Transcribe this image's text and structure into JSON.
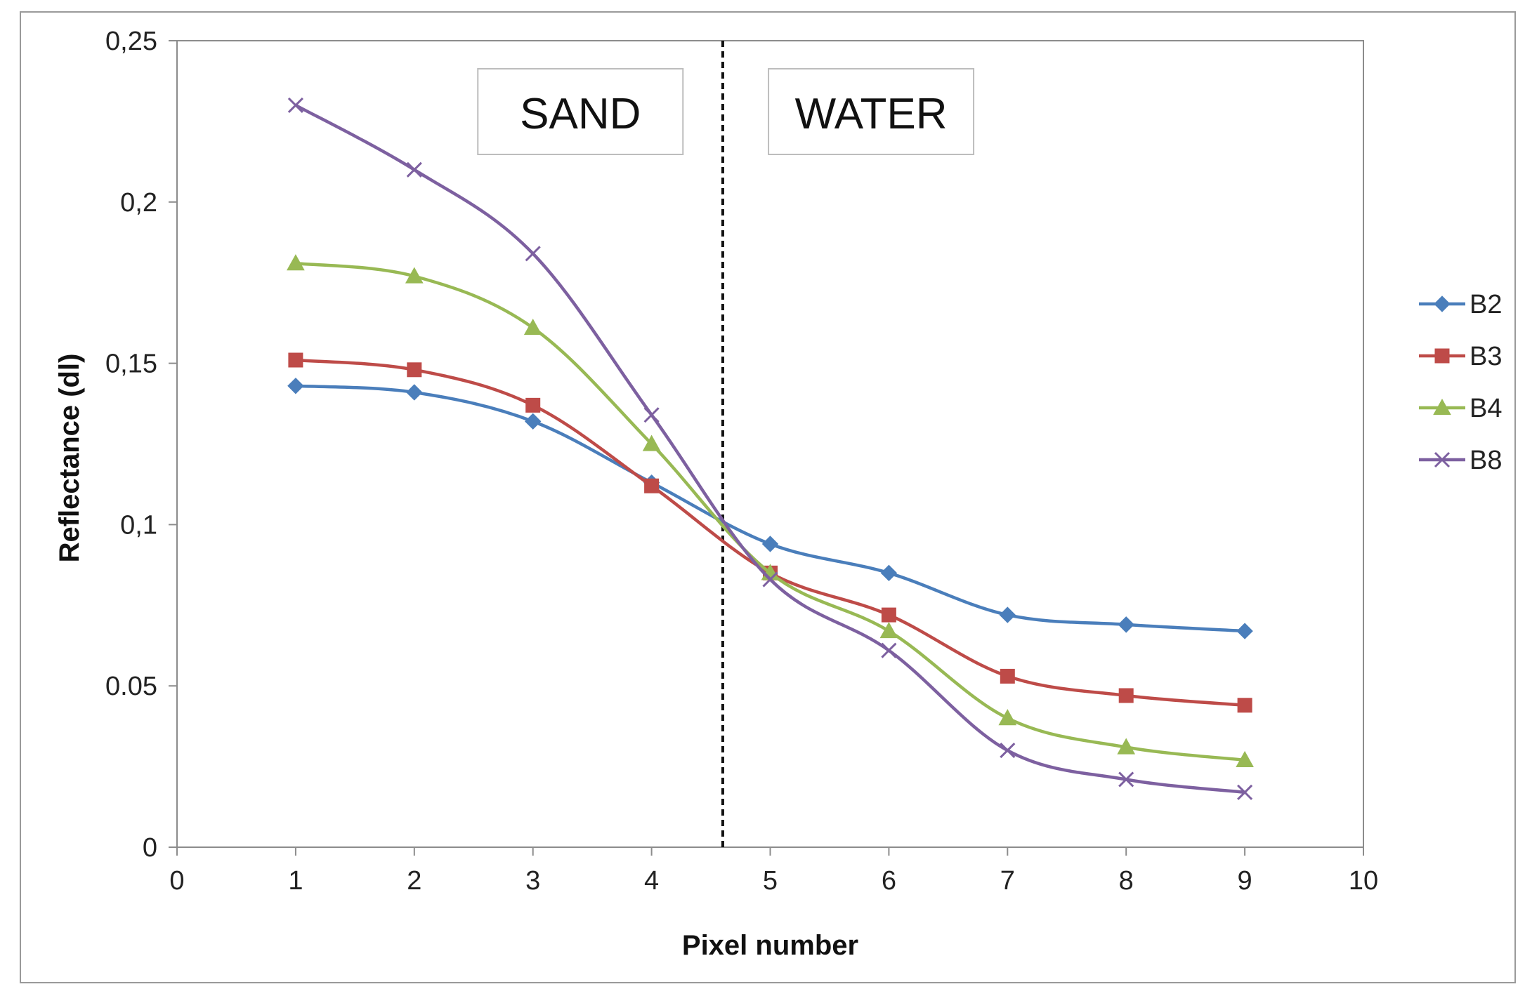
{
  "chart_data": {
    "type": "line",
    "title": "",
    "xlabel": "Pixel number",
    "ylabel": "Reflectance (dl)",
    "xlim": [
      0,
      10
    ],
    "ylim": [
      0,
      0.25
    ],
    "xticks": [
      "0",
      "1",
      "2",
      "3",
      "4",
      "5",
      "6",
      "7",
      "8",
      "9",
      "10"
    ],
    "yticks": [
      "0",
      "0.05",
      "0,1",
      "0,15",
      "0,2",
      "0,25"
    ],
    "x": [
      1,
      2,
      3,
      4,
      5,
      6,
      7,
      8,
      9
    ],
    "series": [
      {
        "name": "B2",
        "color": "#4a7ebb",
        "marker": "diamond",
        "values": [
          0.143,
          0.141,
          0.132,
          0.113,
          0.094,
          0.085,
          0.072,
          0.069,
          0.067
        ]
      },
      {
        "name": "B3",
        "color": "#be4b48",
        "marker": "square",
        "values": [
          0.151,
          0.148,
          0.137,
          0.112,
          0.085,
          0.072,
          0.053,
          0.047,
          0.044
        ]
      },
      {
        "name": "B4",
        "color": "#98b954",
        "marker": "triangle",
        "values": [
          0.181,
          0.177,
          0.161,
          0.125,
          0.085,
          0.067,
          0.04,
          0.031,
          0.027
        ]
      },
      {
        "name": "B8",
        "color": "#7d60a0",
        "marker": "x",
        "values": [
          0.23,
          0.21,
          0.184,
          0.134,
          0.083,
          0.061,
          0.03,
          0.021,
          0.017
        ]
      }
    ],
    "divider_x": 4.6,
    "regions": [
      {
        "label": "SAND",
        "x_center": 3.4
      },
      {
        "label": "WATER",
        "x_center": 5.85
      }
    ],
    "legend_position": "right",
    "grid": false
  }
}
